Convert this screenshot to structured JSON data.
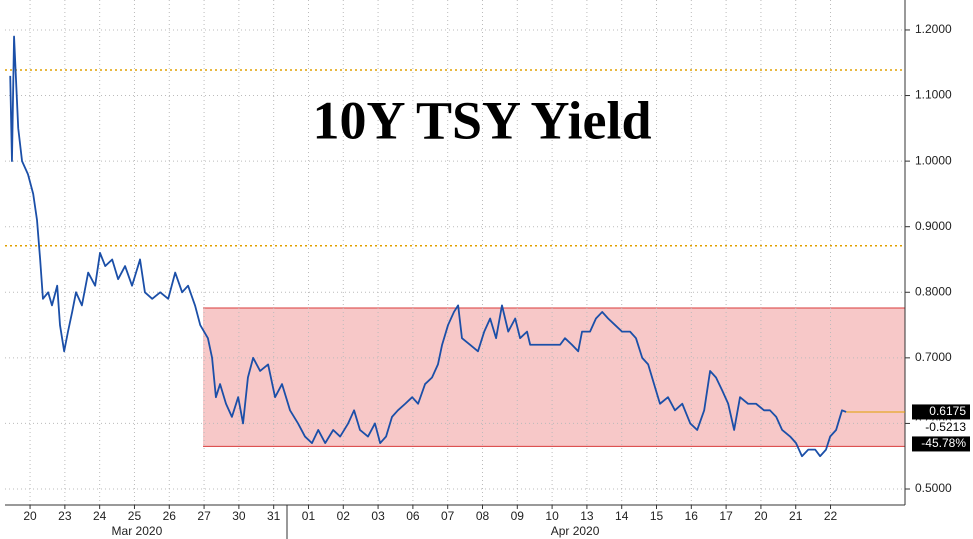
{
  "chart_data": {
    "type": "line",
    "title": "10Y TSY Yield",
    "xlim": [
      -0.72,
      25.14
    ],
    "ylim": [
      0.4756,
      1.2457
    ],
    "xticks": [
      {
        "value": 0,
        "label": "20"
      },
      {
        "value": 1,
        "label": "23"
      },
      {
        "value": 2,
        "label": "24"
      },
      {
        "value": 3,
        "label": "25"
      },
      {
        "value": 4,
        "label": "26"
      },
      {
        "value": 5,
        "label": "27"
      },
      {
        "value": 6,
        "label": "30"
      },
      {
        "value": 7,
        "label": "31"
      },
      {
        "value": 8,
        "label": "01"
      },
      {
        "value": 9,
        "label": "02"
      },
      {
        "value": 10,
        "label": "03"
      },
      {
        "value": 11,
        "label": "06"
      },
      {
        "value": 12,
        "label": "07"
      },
      {
        "value": 13,
        "label": "08"
      },
      {
        "value": 14,
        "label": "09"
      },
      {
        "value": 15,
        "label": "10"
      },
      {
        "value": 16,
        "label": "13"
      },
      {
        "value": 17,
        "label": "14"
      },
      {
        "value": 18,
        "label": "15"
      },
      {
        "value": 19,
        "label": "16"
      },
      {
        "value": 20,
        "label": "17"
      },
      {
        "value": 21,
        "label": "20"
      },
      {
        "value": 22,
        "label": "21"
      },
      {
        "value": 23,
        "label": "22"
      }
    ],
    "months": [
      {
        "value": 3.07,
        "label": "Mar 2020"
      },
      {
        "value": 15.66,
        "label": "Apr 2020"
      }
    ],
    "yticks": [
      {
        "value": 0.5,
        "label": "0.5000"
      },
      {
        "value": 0.6,
        "label": "0.6000"
      },
      {
        "value": 0.7,
        "label": "0.7000"
      },
      {
        "value": 0.8,
        "label": "0.8000"
      },
      {
        "value": 0.9,
        "label": "0.9000"
      },
      {
        "value": 1.0,
        "label": "1.0000"
      },
      {
        "value": 1.1,
        "label": "1.1000"
      },
      {
        "value": 1.2,
        "label": "1.2000"
      }
    ],
    "grid": true,
    "hlines": [
      {
        "value": 1.139,
        "color": "#e0a000"
      },
      {
        "value": 0.871,
        "color": "#e0a000"
      }
    ],
    "channel": {
      "start": 4.97,
      "upper": 0.776,
      "lower": 0.565,
      "color": "#f7c8c8",
      "edge": "#d83a3a"
    },
    "right_labels": [
      {
        "value": 0.6175,
        "label": "0.6175"
      },
      {
        "value": -0.5213,
        "label": "-0.5213"
      },
      {
        "value": -45.78,
        "label": "-45.78%"
      }
    ],
    "series": [
      {
        "color": "#1b4fa8",
        "x": [
          -0.57,
          -0.52,
          -0.46,
          -0.34,
          -0.23,
          -0.06,
          0.09,
          0.2,
          0.29,
          0.37,
          0.52,
          0.63,
          0.78,
          0.86,
          0.98,
          1.09,
          1.21,
          1.32,
          1.49,
          1.67,
          1.87,
          2.01,
          2.16,
          2.36,
          2.53,
          2.73,
          2.93,
          3.16,
          3.3,
          3.51,
          3.74,
          3.97,
          4.17,
          4.37,
          4.54,
          4.74,
          4.89,
          5.11,
          5.23,
          5.34,
          5.46,
          5.63,
          5.8,
          5.98,
          6.12,
          6.26,
          6.41,
          6.61,
          6.84,
          7.04,
          7.24,
          7.47,
          7.7,
          7.9,
          8.1,
          8.28,
          8.48,
          8.71,
          8.91,
          9.14,
          9.31,
          9.48,
          9.71,
          9.91,
          10.06,
          10.23,
          10.4,
          10.57,
          10.78,
          10.98,
          11.15,
          11.35,
          11.55,
          11.72,
          11.84,
          12.01,
          12.18,
          12.3,
          12.41,
          12.64,
          12.87,
          13.05,
          13.22,
          13.39,
          13.56,
          13.74,
          13.94,
          14.08,
          14.28,
          14.37,
          15.09,
          15.23,
          15.37,
          15.57,
          15.75,
          15.86,
          16.09,
          16.26,
          16.44,
          16.61,
          16.81,
          17.01,
          17.24,
          17.41,
          17.59,
          17.76,
          17.93,
          18.1,
          18.33,
          18.53,
          18.74,
          18.97,
          19.17,
          19.37,
          19.54,
          19.71,
          19.89,
          20.06,
          20.23,
          20.4,
          20.63,
          20.86,
          21.09,
          21.26,
          21.44,
          21.61,
          21.84,
          22.01,
          22.18,
          22.36,
          22.56,
          22.7,
          22.87,
          22.99,
          23.16,
          23.33,
          23.45
        ],
        "values": [
          1.13,
          1.0,
          1.19,
          1.05,
          1.0,
          0.98,
          0.95,
          0.91,
          0.85,
          0.79,
          0.8,
          0.78,
          0.81,
          0.75,
          0.71,
          0.74,
          0.77,
          0.8,
          0.78,
          0.83,
          0.81,
          0.86,
          0.84,
          0.85,
          0.82,
          0.84,
          0.81,
          0.85,
          0.8,
          0.79,
          0.8,
          0.79,
          0.83,
          0.8,
          0.81,
          0.78,
          0.75,
          0.73,
          0.7,
          0.64,
          0.66,
          0.63,
          0.61,
          0.64,
          0.6,
          0.67,
          0.7,
          0.68,
          0.69,
          0.64,
          0.66,
          0.62,
          0.6,
          0.58,
          0.57,
          0.59,
          0.57,
          0.59,
          0.58,
          0.6,
          0.62,
          0.59,
          0.58,
          0.6,
          0.57,
          0.58,
          0.61,
          0.62,
          0.63,
          0.64,
          0.63,
          0.66,
          0.67,
          0.69,
          0.72,
          0.75,
          0.77,
          0.78,
          0.73,
          0.72,
          0.71,
          0.74,
          0.76,
          0.73,
          0.78,
          0.74,
          0.76,
          0.73,
          0.74,
          0.72,
          0.72,
          0.72,
          0.73,
          0.72,
          0.71,
          0.74,
          0.74,
          0.76,
          0.77,
          0.76,
          0.75,
          0.74,
          0.74,
          0.73,
          0.7,
          0.69,
          0.66,
          0.63,
          0.64,
          0.62,
          0.63,
          0.6,
          0.59,
          0.62,
          0.68,
          0.67,
          0.65,
          0.63,
          0.59,
          0.64,
          0.63,
          0.63,
          0.62,
          0.62,
          0.61,
          0.59,
          0.58,
          0.57,
          0.55,
          0.56,
          0.56,
          0.55,
          0.56,
          0.58,
          0.59,
          0.62,
          0.6175
        ]
      }
    ]
  }
}
